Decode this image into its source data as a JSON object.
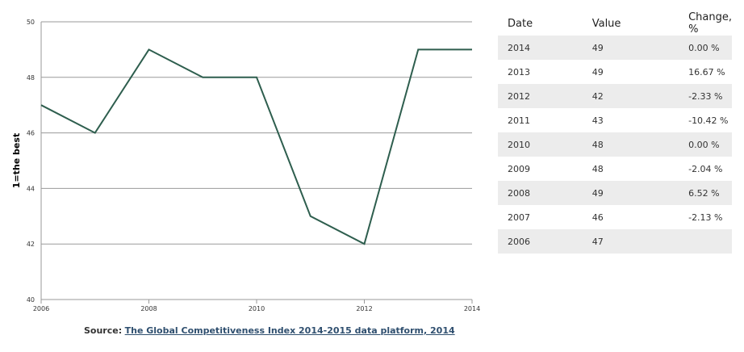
{
  "chart_data": {
    "type": "line",
    "title": "",
    "xlabel": "",
    "ylabel": "1=the best",
    "x": [
      2006,
      2007,
      2008,
      2009,
      2010,
      2011,
      2012,
      2013,
      2014
    ],
    "series": [
      {
        "values": [
          47,
          46,
          49,
          48,
          48,
          43,
          42,
          49,
          49
        ]
      }
    ],
    "xticks": [
      "2006",
      "2008",
      "2010",
      "2012",
      "2014"
    ],
    "yticks": [
      "40",
      "42",
      "44",
      "46",
      "48",
      "50"
    ],
    "xlim": [
      2006,
      2014
    ],
    "ylim": [
      40,
      50
    ],
    "grid": "horizontal",
    "line_color": "#2e5e4e"
  },
  "source": {
    "prefix": "Source:",
    "link_text": "The Global Competitiveness Index 2014-2015 data platform, 2014"
  },
  "table": {
    "headers": [
      "Date",
      "Value",
      "Change, %"
    ],
    "rows": [
      [
        "2014",
        "49",
        "0.00 %"
      ],
      [
        "2013",
        "49",
        "16.67 %"
      ],
      [
        "2012",
        "42",
        "-2.33 %"
      ],
      [
        "2011",
        "43",
        "-10.42 %"
      ],
      [
        "2010",
        "48",
        "0.00 %"
      ],
      [
        "2009",
        "48",
        "-2.04 %"
      ],
      [
        "2008",
        "49",
        "6.52 %"
      ],
      [
        "2007",
        "46",
        "-2.13 %"
      ],
      [
        "2006",
        "47",
        ""
      ]
    ]
  }
}
